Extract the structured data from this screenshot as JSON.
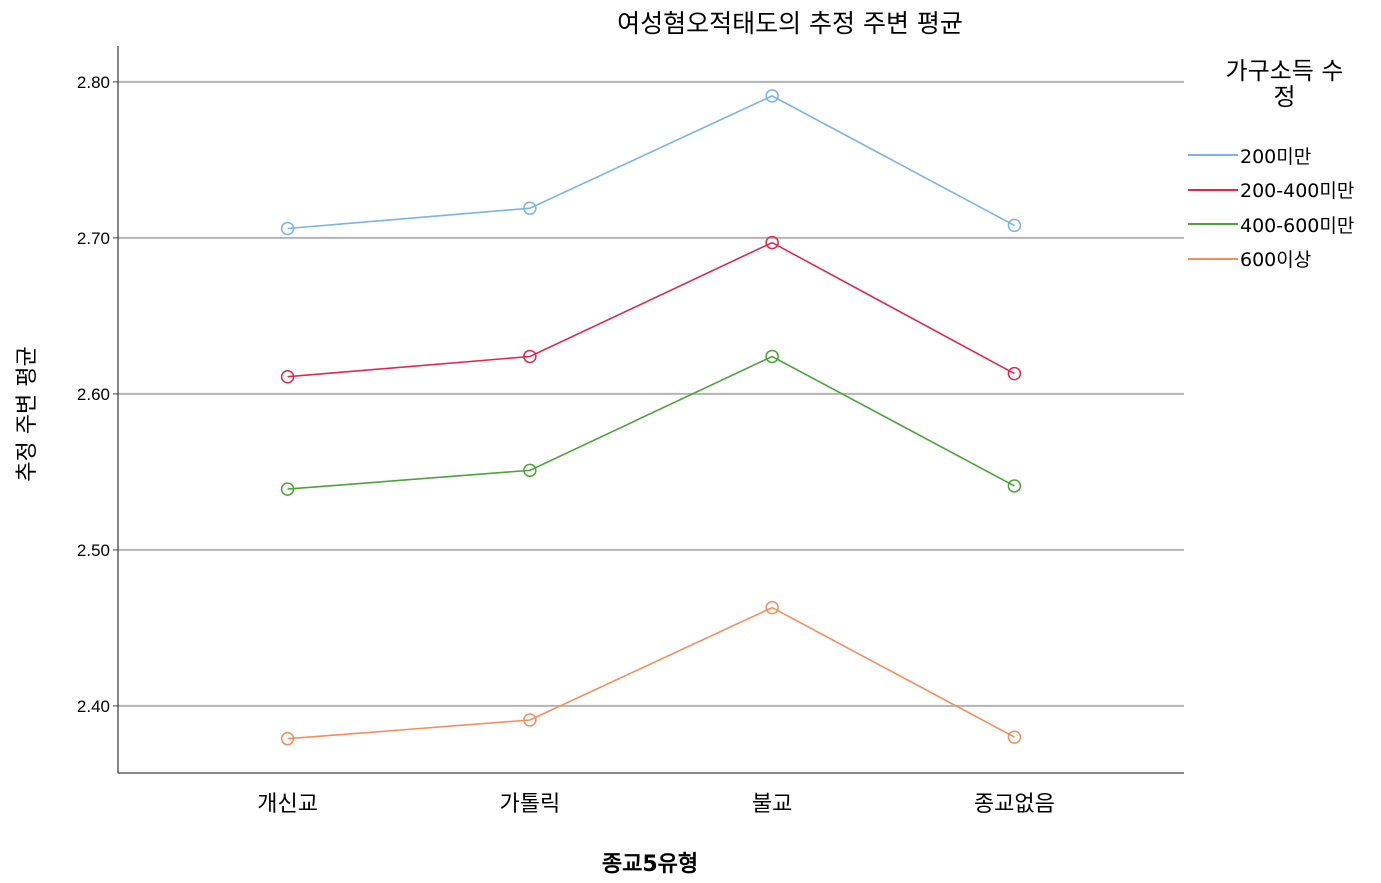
{
  "chart_data": {
    "type": "line",
    "title": "여성혐오적태도의 추정 주변 평균",
    "xlabel": "종교5유형",
    "ylabel": "추정 주변 평균",
    "categories": [
      "개신교",
      "가톨릭",
      "불교",
      "종교없음"
    ],
    "ylim": [
      2.357,
      2.823
    ],
    "yticks": [
      "2.40",
      "2.50",
      "2.60",
      "2.70",
      "2.80"
    ],
    "grid": true,
    "legend_title": "가구소득 수정",
    "legend_title_lines": [
      "가구소득 수",
      "정"
    ],
    "legend_position": "right",
    "series": [
      {
        "name": "200미만",
        "color": "#7AB2EB",
        "values": [
          2.706,
          2.719,
          2.791,
          2.708
        ]
      },
      {
        "name": "200-400미만",
        "color": "#E0284E",
        "values": [
          2.611,
          2.624,
          2.697,
          2.613
        ]
      },
      {
        "name": "400-600미만",
        "color": "#4CA33C",
        "values": [
          2.539,
          2.551,
          2.624,
          2.541
        ]
      },
      {
        "name": "600이상",
        "color": "#F68D5C",
        "values": [
          2.379,
          2.391,
          2.463,
          2.38
        ]
      }
    ]
  }
}
